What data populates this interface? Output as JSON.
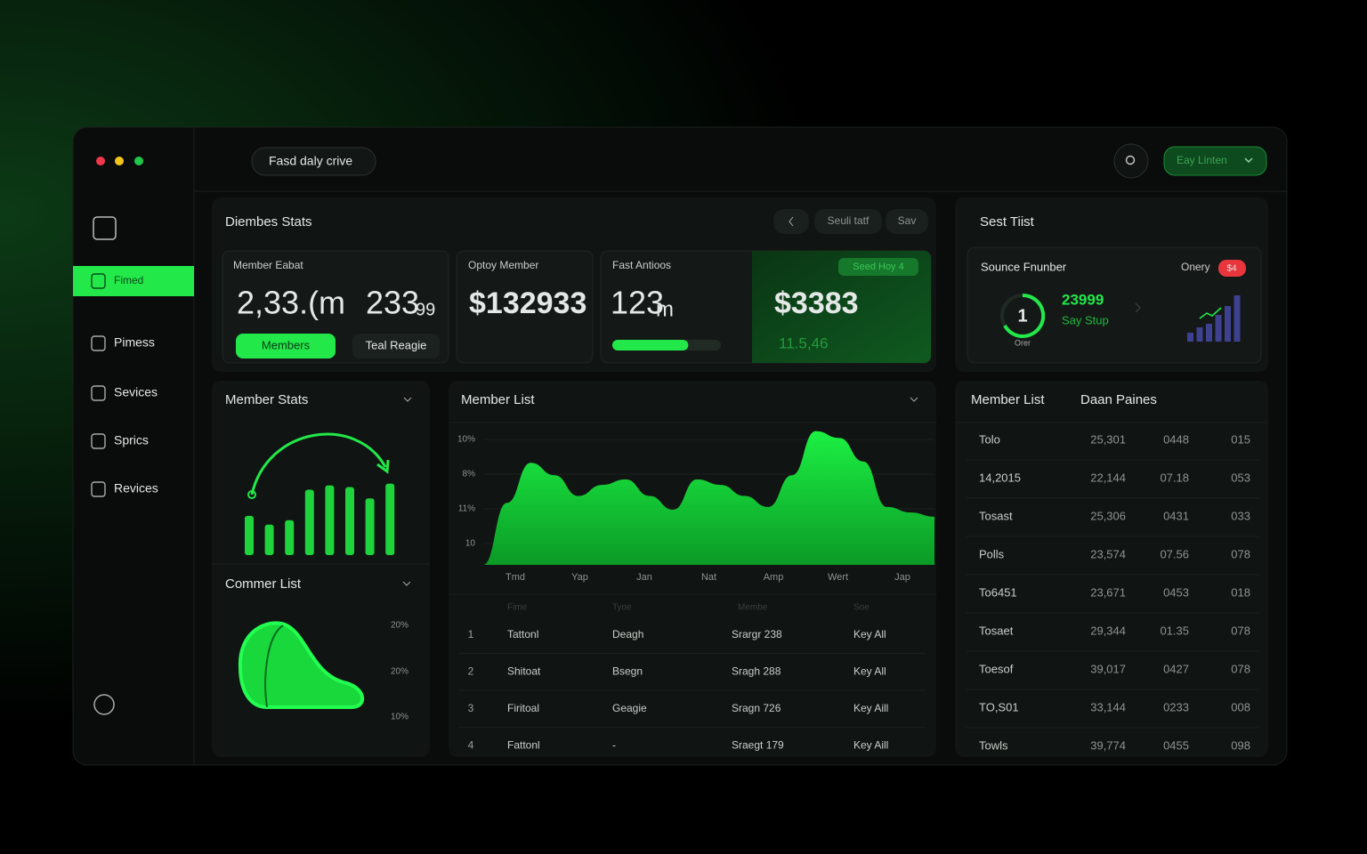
{
  "topbar": {
    "search": "Fasd daly crive",
    "button": "Eay Linten"
  },
  "sidebar": {
    "items": [
      "Fimed",
      "Pimess",
      "Sevices",
      "Sprics",
      "Revices"
    ]
  },
  "stats": {
    "title": "Diembes Stats",
    "buttons": [
      "Seuli tatf",
      "Sav"
    ],
    "cards": [
      {
        "label": "Member Eabat",
        "value": "2,33.(m",
        "value2": "233",
        "value2_suffix": "99",
        "buttons": [
          "Members",
          "Teal Reagie"
        ]
      },
      {
        "label": "Optoy Member",
        "value": "$132933"
      },
      {
        "label": "Fast Antioos",
        "value": "123",
        "suffix": "m",
        "progress": 70
      },
      {
        "badge": "Seed Hoy 4",
        "value": "$3383",
        "sub": "11.5,46"
      }
    ]
  },
  "source": {
    "title": "Sest Tiist",
    "label": "Sounce Fnunber",
    "filter": "Onery",
    "badge": "$4",
    "gauge": "1",
    "gauge_label": "Orer",
    "value": "23999",
    "sub": "Say Stup"
  },
  "commer_list": {
    "title": "Commer List",
    "labels": [
      "20%",
      "20%",
      "10%"
    ]
  },
  "member_table": {
    "headers": [
      "Fime",
      "Tyoe",
      "Membe",
      "Soe"
    ],
    "rows": [
      [
        "1",
        "Tattonl",
        "Deagh",
        "Srargr 238",
        "Key All"
      ],
      [
        "2",
        "Shitoat",
        "Bsegn",
        "Sragh 288",
        "Key All"
      ],
      [
        "3",
        "Firitoal",
        "Geagie",
        "Sragn 726",
        "Key Aill"
      ],
      [
        "4",
        "Fattonl",
        "-",
        "Sraegt 179",
        "Key Aill"
      ]
    ]
  },
  "side_table": {
    "headers": [
      "Member List",
      "Daan Paines"
    ],
    "rows": [
      [
        "Tolo",
        "25,301",
        "0448",
        "015"
      ],
      [
        "14,2015",
        "22,144",
        "07.18",
        "053"
      ],
      [
        "Tosast",
        "25,306",
        "0431",
        "033"
      ],
      [
        "Polls",
        "23,574",
        "07.56",
        "078"
      ],
      [
        "To6451",
        "23,671",
        "0453",
        "018"
      ],
      [
        "Tosaet",
        "29,344",
        "01.35",
        "078"
      ],
      [
        "Toesof",
        "39,017",
        "0427",
        "078"
      ],
      [
        "TO,S01",
        "33,144",
        "0233",
        "008"
      ],
      [
        "Towls",
        "39,774",
        "0455",
        "098"
      ]
    ]
  },
  "chart_data": [
    {
      "type": "bar",
      "title": "Member Stats",
      "values": [
        45,
        35,
        40,
        75,
        80,
        78,
        65,
        82
      ],
      "color": "#1fd33c"
    },
    {
      "type": "area",
      "title": "Member List",
      "values": [
        0,
        45,
        74,
        65,
        50,
        58,
        62,
        50,
        40,
        62,
        58,
        50,
        42,
        65,
        97,
        92,
        75,
        42,
        38,
        35
      ],
      "y_labels": [
        "10%",
        "8%",
        "11%",
        "10"
      ],
      "x_labels": [
        "Tmd",
        "Yap",
        "Jan",
        "Nat",
        "Amp",
        "Wert",
        "Jap"
      ],
      "color": "#19e63c"
    },
    {
      "type": "bar",
      "values": [
        10,
        16,
        20,
        30,
        40,
        52
      ],
      "color": "#3d418f"
    }
  ]
}
